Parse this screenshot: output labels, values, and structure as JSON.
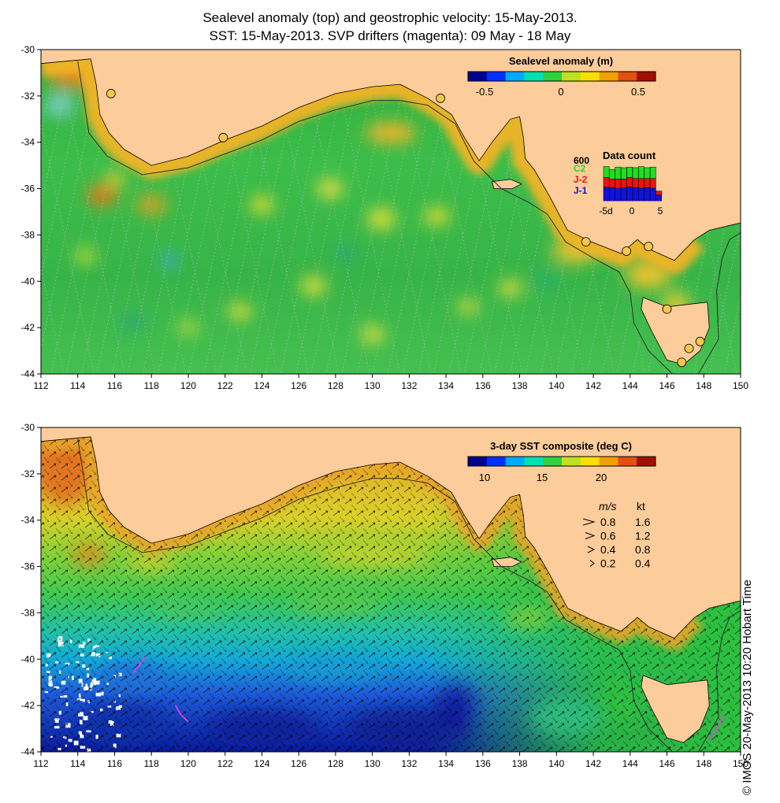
{
  "title": {
    "line1": "Sealevel anomaly (top) and geostrophic velocity: 15-May-2013.",
    "line2": "SST: 15-May-2013. SVP drifters (magenta): 09 May - 18 May"
  },
  "colors": {
    "land": "#fccc9a",
    "coastline": "#000000",
    "shelf_contour": "#222222",
    "drifter": "#e040e0",
    "tide_gauge": "#f7c64a",
    "series_c2": "#22dd22",
    "series_j2": "#ee1111",
    "series_j1": "#1111dd"
  },
  "axes": {
    "lon_ticks": [
      "112",
      "114",
      "116",
      "118",
      "120",
      "122",
      "124",
      "126",
      "128",
      "130",
      "132",
      "134",
      "136",
      "138",
      "140",
      "142",
      "144",
      "146",
      "148",
      "150"
    ],
    "lat_ticks": [
      "-30",
      "-32",
      "-34",
      "-36",
      "-38",
      "-40",
      "-42",
      "-44"
    ]
  },
  "map_data": {
    "lon_range": [
      112,
      150
    ],
    "lat_range": [
      -30,
      -44
    ],
    "coastline": [
      [
        112,
        -30.6
      ],
      [
        114.7,
        -30.4
      ],
      [
        115.0,
        -31.5
      ],
      [
        115.2,
        -32.8
      ],
      [
        115.7,
        -33.6
      ],
      [
        116.5,
        -34.3
      ],
      [
        118.0,
        -35.0
      ],
      [
        120.0,
        -34.6
      ],
      [
        122.0,
        -33.9
      ],
      [
        124.0,
        -33.3
      ],
      [
        126.0,
        -32.5
      ],
      [
        128.0,
        -31.9
      ],
      [
        130.0,
        -31.6
      ],
      [
        131.5,
        -31.5
      ],
      [
        133.0,
        -32.1
      ],
      [
        134.3,
        -32.8
      ],
      [
        135.0,
        -33.8
      ],
      [
        135.8,
        -34.8
      ],
      [
        136.5,
        -34.0
      ],
      [
        137.5,
        -33.0
      ],
      [
        138.0,
        -32.9
      ],
      [
        138.2,
        -33.8
      ],
      [
        138.3,
        -34.7
      ],
      [
        138.8,
        -35.2
      ],
      [
        139.6,
        -36.3
      ],
      [
        140.6,
        -37.8
      ],
      [
        141.9,
        -38.3
      ],
      [
        143.5,
        -38.8
      ],
      [
        144.4,
        -38.2
      ],
      [
        145.0,
        -38.6
      ],
      [
        146.4,
        -39.1
      ],
      [
        147.5,
        -38.2
      ],
      [
        148.3,
        -37.8
      ],
      [
        149.9,
        -37.5
      ],
      [
        150,
        -37.5
      ],
      [
        150,
        -30
      ],
      [
        112,
        -30
      ]
    ],
    "tasmania": [
      [
        144.7,
        -40.7
      ],
      [
        146.0,
        -41.1
      ],
      [
        148.2,
        -40.9
      ],
      [
        148.3,
        -42.0
      ],
      [
        147.8,
        -43.0
      ],
      [
        146.9,
        -43.6
      ],
      [
        146.0,
        -43.4
      ],
      [
        145.2,
        -42.2
      ],
      [
        144.6,
        -41.2
      ]
    ],
    "kangaroo_island": [
      [
        136.5,
        -35.7
      ],
      [
        137.5,
        -35.6
      ],
      [
        138.1,
        -35.8
      ],
      [
        137.6,
        -36.0
      ],
      [
        136.6,
        -36.0
      ]
    ],
    "shelf_contour": [
      [
        114.0,
        -30.5
      ],
      [
        114.3,
        -32.0
      ],
      [
        114.6,
        -33.6
      ],
      [
        115.6,
        -34.6
      ],
      [
        117.5,
        -35.4
      ],
      [
        120.0,
        -35.1
      ],
      [
        122.0,
        -34.5
      ],
      [
        124.0,
        -33.9
      ],
      [
        126.0,
        -33.1
      ],
      [
        128.0,
        -32.6
      ],
      [
        130.0,
        -32.2
      ],
      [
        131.5,
        -32.2
      ],
      [
        133.0,
        -32.4
      ],
      [
        134.5,
        -33.2
      ],
      [
        135.5,
        -34.8
      ],
      [
        137.0,
        -36.0
      ],
      [
        138.5,
        -36.6
      ],
      [
        139.5,
        -37.1
      ],
      [
        140.5,
        -38.3
      ],
      [
        142.0,
        -39.0
      ],
      [
        143.4,
        -39.6
      ],
      [
        144.0,
        -40.5
      ],
      [
        144.2,
        -41.8
      ],
      [
        145.0,
        -43.0
      ],
      [
        146.3,
        -44.0
      ]
    ],
    "east_contour": [
      [
        147.7,
        -44.0
      ],
      [
        148.8,
        -42.5
      ],
      [
        148.7,
        -40.4
      ],
      [
        149.0,
        -39.0
      ],
      [
        149.4,
        -38.2
      ],
      [
        150,
        -37.9
      ]
    ],
    "tide_gauges": [
      [
        115.8,
        -31.9
      ],
      [
        121.9,
        -33.8
      ],
      [
        133.7,
        -32.1
      ],
      [
        141.6,
        -38.3
      ],
      [
        143.8,
        -38.7
      ],
      [
        145.0,
        -38.5
      ],
      [
        146.0,
        -41.2
      ],
      [
        147.2,
        -42.9
      ],
      [
        146.8,
        -43.5
      ],
      [
        147.8,
        -42.6
      ]
    ],
    "drifters": [
      [
        [
          117.0,
          -40.6
        ],
        [
          117.4,
          -40.2
        ],
        [
          117.7,
          -39.9
        ]
      ],
      [
        [
          119.3,
          -42.0
        ],
        [
          119.6,
          -42.4
        ],
        [
          120.0,
          -42.7
        ]
      ],
      [
        [
          148.3,
          -43.5
        ],
        [
          148.8,
          -42.9
        ],
        [
          149.1,
          -42.4
        ]
      ]
    ]
  },
  "sla_legend": {
    "title": "Sealevel anomaly (m)",
    "ticks": [
      "-0.5",
      "0",
      "0.5"
    ],
    "colors": [
      "#00008f",
      "#0030ff",
      "#00aaff",
      "#00e0b0",
      "#30d040",
      "#c0e020",
      "#f7e000",
      "#f0a000",
      "#e05010",
      "#a01000"
    ]
  },
  "sst_legend": {
    "title": "3-day SST composite (deg C)",
    "ticks": [
      "10",
      "15",
      "20"
    ],
    "colors": [
      "#00008f",
      "#0030ff",
      "#00aaff",
      "#00e0b0",
      "#30d040",
      "#c0e020",
      "#f7e000",
      "#f0a000",
      "#e05010",
      "#a01000"
    ]
  },
  "data_count": {
    "title": "Data count",
    "max_label": "600",
    "series_labels": [
      "C2",
      "J-2",
      "J-1"
    ],
    "x_labels": [
      "-5d",
      "0",
      "5"
    ],
    "stack": {
      "day": [
        -6,
        -5,
        -4,
        -3,
        -2,
        -1,
        0,
        1,
        2,
        3
      ],
      "j1": [
        240,
        230,
        220,
        230,
        240,
        230,
        220,
        230,
        220,
        100
      ],
      "j2": [
        170,
        150,
        160,
        150,
        170,
        160,
        170,
        160,
        170,
        70
      ],
      "c2": [
        190,
        170,
        210,
        200,
        180,
        190,
        210,
        190,
        200,
        0
      ]
    }
  },
  "velocity_key": {
    "header_ms": "m/s",
    "header_kt": "kt",
    "rows": [
      {
        "ms": "0.8",
        "kt": "1.6"
      },
      {
        "ms": "0.6",
        "kt": "1.2"
      },
      {
        "ms": "0.4",
        "kt": "0.8"
      },
      {
        "ms": "0.2",
        "kt": "0.4"
      }
    ]
  },
  "credit": "© IMOS 20-May-2013 10:20 Hobart Time"
}
